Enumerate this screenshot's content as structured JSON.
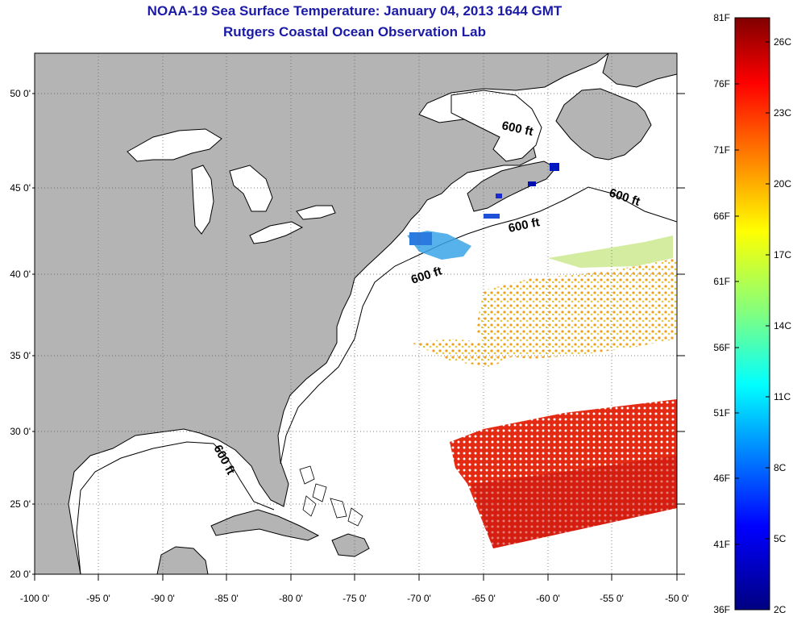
{
  "header": {
    "title": "NOAA-19 Sea Surface Temperature:  January 04, 2013 1644 GMT",
    "subtitle": "Rutgers Coastal Ocean Observation Lab"
  },
  "map": {
    "lon_ticks": [
      "-100 0'",
      "-95 0'",
      "-90 0'",
      "-85 0'",
      "-80 0'",
      "-75 0'",
      "-70 0'",
      "-65 0'",
      "-60 0'",
      "-55 0'",
      "-50 0'"
    ],
    "lat_ticks": [
      "50 0'",
      "45 0'",
      "40 0'",
      "35 0'",
      "30 0'",
      "25 0'",
      "20 0'"
    ],
    "contour_label": "600 ft",
    "colors": {
      "land": "#b4b4b4",
      "ocean": "#ffffff",
      "coast": "#000000"
    }
  },
  "colorbar": {
    "fahrenheit_labels": [
      "81F",
      "76F",
      "71F",
      "66F",
      "61F",
      "56F",
      "51F",
      "46F",
      "41F",
      "36F"
    ],
    "celsius_labels": [
      "26C",
      "23C",
      "20C",
      "17C",
      "14C",
      "11C",
      "8C",
      "5C",
      "2C"
    ],
    "colors": [
      "#800000",
      "#ff0000",
      "#ff8000",
      "#ffff00",
      "#80ff80",
      "#00ffff",
      "#0080ff",
      "#0000ff",
      "#000080"
    ]
  }
}
